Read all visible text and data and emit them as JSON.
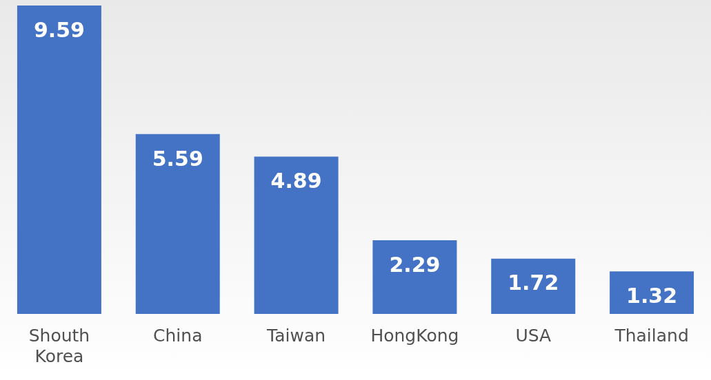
{
  "chart_data": {
    "type": "bar",
    "categories": [
      "Shouth Korea",
      "China",
      "Taiwan",
      "HongKong",
      "USA",
      "Thailand"
    ],
    "values": [
      9.59,
      5.59,
      4.89,
      2.29,
      1.72,
      1.32
    ],
    "color": "#4472c4",
    "data_labels": true,
    "grid": false,
    "legend": false
  }
}
